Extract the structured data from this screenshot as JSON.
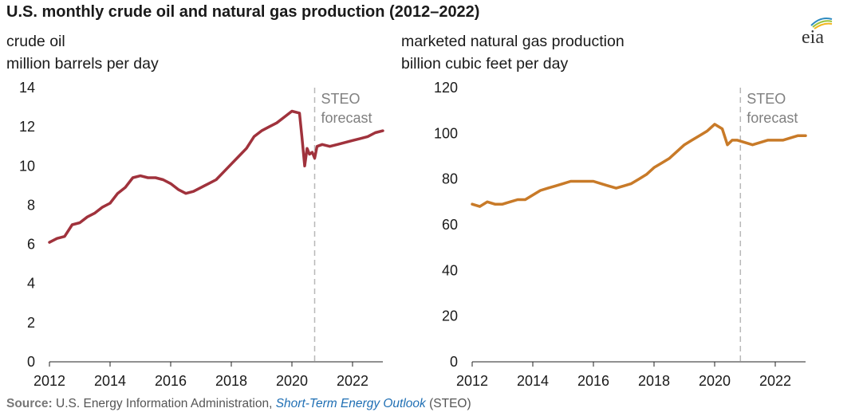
{
  "title": "U.S. monthly crude oil and natural gas production (2012–2022)",
  "logo_text": "eia",
  "colors": {
    "oil": "#a0323c",
    "gas": "#c87a28",
    "forecast_line": "#b8b8b8",
    "axis": "#222222",
    "annotation": "#808080",
    "source_link": "#1f6fb4"
  },
  "source": {
    "label": "Source:",
    "text": " U.S. Energy Information Administration, ",
    "link": "Short-Term Energy Outlook",
    "suffix": " (STEO)"
  },
  "chart_data": [
    {
      "type": "line",
      "title_line1": "crude oil",
      "title_line2": "million barrels per day",
      "xlim": [
        2012,
        2023
      ],
      "ylim": [
        0,
        14
      ],
      "yticks": [
        0,
        2,
        4,
        6,
        8,
        10,
        12,
        14
      ],
      "xticks": [
        2012,
        2014,
        2016,
        2018,
        2020,
        2022
      ],
      "forecast_start": 2020.75,
      "annotation": [
        "STEO",
        "forecast"
      ],
      "series": [
        {
          "x": [
            2012.0,
            2012.25,
            2012.5,
            2012.75,
            2013.0,
            2013.25,
            2013.5,
            2013.75,
            2014.0,
            2014.25,
            2014.5,
            2014.75,
            2015.0,
            2015.25,
            2015.5,
            2015.75,
            2016.0,
            2016.25,
            2016.5,
            2016.75,
            2017.0,
            2017.25,
            2017.5,
            2017.75,
            2018.0,
            2018.25,
            2018.5,
            2018.75,
            2019.0,
            2019.25,
            2019.5,
            2019.75,
            2020.0,
            2020.25,
            2020.33,
            2020.42,
            2020.5,
            2020.58,
            2020.67,
            2020.75,
            2020.83,
            2021.0,
            2021.25,
            2021.5,
            2021.75,
            2022.0,
            2022.25,
            2022.5,
            2022.75,
            2023.0
          ],
          "y": [
            6.1,
            6.3,
            6.4,
            7.0,
            7.1,
            7.4,
            7.6,
            7.9,
            8.1,
            8.6,
            8.9,
            9.4,
            9.5,
            9.4,
            9.4,
            9.3,
            9.1,
            8.8,
            8.6,
            8.7,
            8.9,
            9.1,
            9.3,
            9.7,
            10.1,
            10.5,
            10.9,
            11.5,
            11.8,
            12.0,
            12.2,
            12.5,
            12.8,
            12.7,
            11.5,
            10.0,
            10.9,
            10.6,
            10.7,
            10.4,
            11.0,
            11.1,
            11.0,
            11.1,
            11.2,
            11.3,
            11.4,
            11.5,
            11.7,
            11.8
          ]
        }
      ]
    },
    {
      "type": "line",
      "title_line1": "marketed natural gas production",
      "title_line2": "billion cubic feet per day",
      "xlim": [
        2012,
        2023
      ],
      "ylim": [
        0,
        120
      ],
      "yticks": [
        0,
        20,
        40,
        60,
        80,
        100,
        120
      ],
      "xticks": [
        2012,
        2014,
        2016,
        2018,
        2020,
        2022
      ],
      "forecast_start": 2020.85,
      "annotation": [
        "STEO",
        "forecast"
      ],
      "series": [
        {
          "x": [
            2012.0,
            2012.25,
            2012.5,
            2012.75,
            2013.0,
            2013.25,
            2013.5,
            2013.75,
            2014.0,
            2014.25,
            2014.5,
            2014.75,
            2015.0,
            2015.25,
            2015.5,
            2015.75,
            2016.0,
            2016.25,
            2016.5,
            2016.75,
            2017.0,
            2017.25,
            2017.5,
            2017.75,
            2018.0,
            2018.25,
            2018.5,
            2018.75,
            2019.0,
            2019.25,
            2019.5,
            2019.75,
            2020.0,
            2020.25,
            2020.42,
            2020.58,
            2020.75,
            2021.0,
            2021.25,
            2021.5,
            2021.75,
            2022.0,
            2022.25,
            2022.5,
            2022.75,
            2023.0
          ],
          "y": [
            69,
            68,
            70,
            69,
            69,
            70,
            71,
            71,
            73,
            75,
            76,
            77,
            78,
            79,
            79,
            79,
            79,
            78,
            77,
            76,
            77,
            78,
            80,
            82,
            85,
            87,
            89,
            92,
            95,
            97,
            99,
            101,
            104,
            102,
            95,
            97,
            97,
            96,
            95,
            96,
            97,
            97,
            97,
            98,
            99,
            99
          ]
        }
      ]
    }
  ]
}
